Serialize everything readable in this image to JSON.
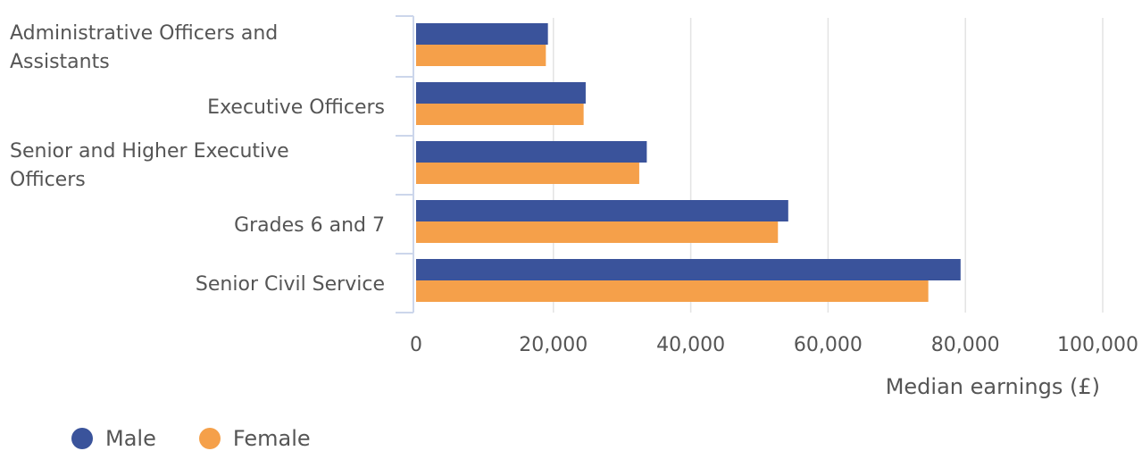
{
  "chart_data": {
    "type": "bar",
    "orientation": "horizontal",
    "categories": [
      "Administrative Officers and Assistants",
      "Executive Officers",
      "Senior and Higher Executive Officers",
      "Grades 6 and 7",
      "Senior Civil Service"
    ],
    "category_lines": [
      [
        "Administrative Officers and",
        "Assistants"
      ],
      [
        "Executive Officers"
      ],
      [
        "Senior and Higher Executive",
        "Officers"
      ],
      [
        "Grades 6 and 7"
      ],
      [
        "Senior Civil Service"
      ]
    ],
    "series": [
      {
        "name": "Male",
        "color": "#3a539b",
        "values": [
          19200,
          24700,
          33600,
          54200,
          79300
        ]
      },
      {
        "name": "Female",
        "color": "#f5a04a",
        "values": [
          18900,
          24400,
          32500,
          52700,
          74600
        ]
      }
    ],
    "xlabel": "Median earnings (£)",
    "xlim": [
      0,
      100000
    ],
    "xticks": [
      0,
      20000,
      40000,
      60000,
      80000,
      100000
    ],
    "xtick_labels": [
      "0",
      "20,000",
      "40,000",
      "60,000",
      "80,000",
      "100,000"
    ],
    "grid": "vertical",
    "legend_position": "bottom-left"
  }
}
